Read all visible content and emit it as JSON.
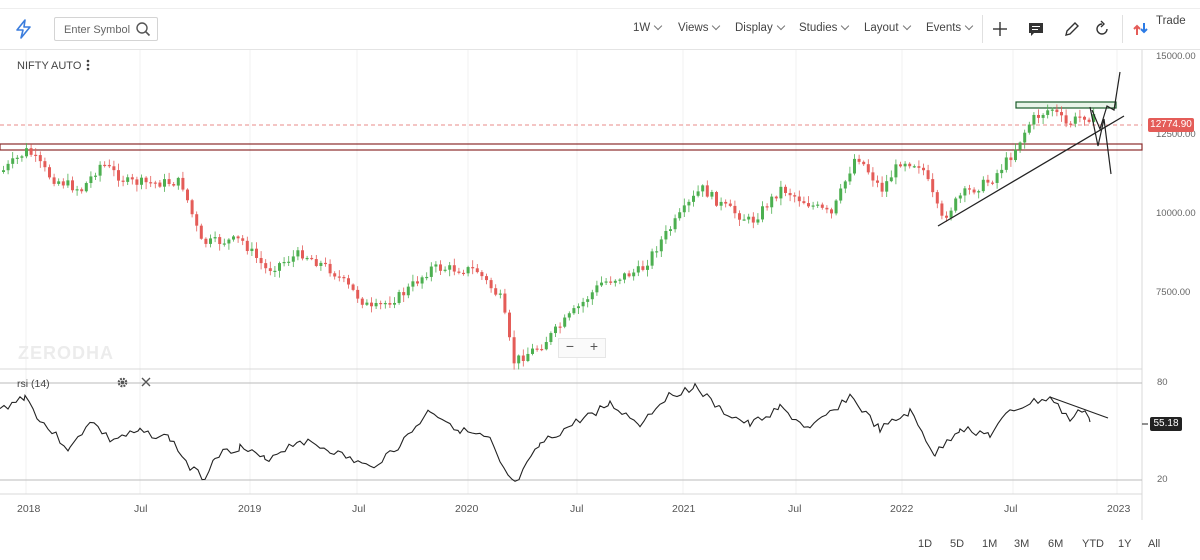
{
  "toolbar": {
    "search_placeholder": "Enter Symbol",
    "interval": "1W",
    "menus": [
      "Views",
      "Display",
      "Studies",
      "Layout",
      "Events"
    ],
    "trade_label": "Trade"
  },
  "chart": {
    "symbol": "NIFTY AUTO",
    "watermark": "ZERODHA",
    "last_price": "12774.90",
    "y_axis_labels": [
      "15000.00",
      "12500.00",
      "10000.00",
      "7500.00"
    ],
    "zoom_minus": "−",
    "zoom_plus": "+"
  },
  "rsi": {
    "label": "rsi (14)",
    "value": "55.18",
    "axis_labels": [
      "80",
      "20"
    ]
  },
  "x_axis_labels": [
    "2018",
    "Jul",
    "2019",
    "Jul",
    "2020",
    "Jul",
    "2021",
    "Jul",
    "2022",
    "Jul",
    "2023"
  ],
  "range_buttons": [
    "1D",
    "5D",
    "1M",
    "3M",
    "6M",
    "YTD",
    "1Y",
    "All"
  ],
  "colors": {
    "up": "#4caf50",
    "down": "#e45c58",
    "accent": "#2c7be5",
    "resistance": "#8b2b2b",
    "zone": "#1a5c2a"
  }
}
